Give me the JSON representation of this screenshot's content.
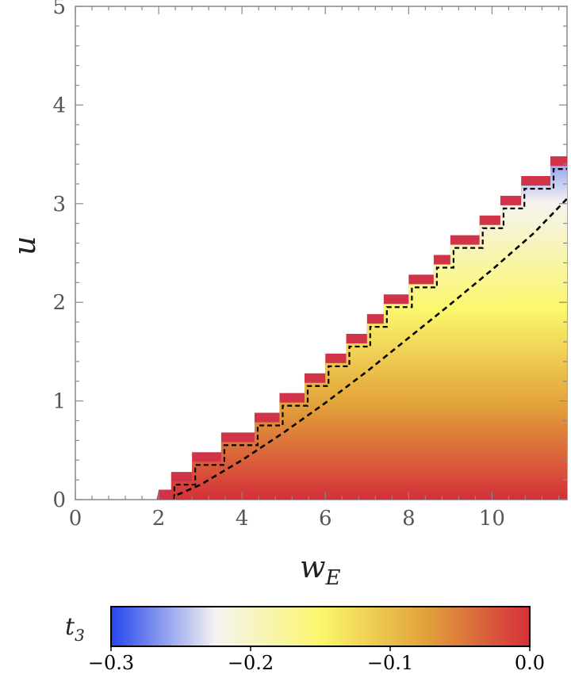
{
  "chart_data": {
    "type": "heatmap",
    "title": "",
    "xlabel": "w_E",
    "ylabel": "u",
    "xlim": [
      0,
      11.8
    ],
    "ylim": [
      0,
      5
    ],
    "x_ticks": [
      0,
      2,
      4,
      6,
      8,
      10
    ],
    "x_tick_labels": [
      "0",
      "2",
      "4",
      "6",
      "8",
      "10"
    ],
    "y_ticks": [
      0,
      1,
      2,
      3,
      4,
      5
    ],
    "y_tick_labels": [
      "0",
      "1",
      "2",
      "3",
      "4",
      "5"
    ],
    "region_upper_boundary": {
      "description_points_x": [
        2.0,
        2.3,
        2.3,
        2.8,
        2.8,
        3.5,
        3.5,
        4.3,
        4.3,
        4.9,
        4.9,
        5.5,
        5.5,
        6.0,
        6.0,
        6.5,
        6.5,
        7.0,
        7.0,
        7.4,
        7.4,
        8.0,
        8.0,
        8.6,
        8.6,
        9.0,
        9.0,
        9.7,
        9.7,
        10.2,
        10.2,
        10.7,
        10.7,
        11.4,
        11.4,
        11.8
      ],
      "description_points_u": [
        0.1,
        0.1,
        0.28,
        0.28,
        0.48,
        0.48,
        0.68,
        0.68,
        0.88,
        0.88,
        1.08,
        1.08,
        1.28,
        1.28,
        1.48,
        1.48,
        1.68,
        1.68,
        1.88,
        1.88,
        2.08,
        2.08,
        2.28,
        2.28,
        2.48,
        2.48,
        2.68,
        2.68,
        2.88,
        2.88,
        3.08,
        3.08,
        3.28,
        3.28,
        3.48,
        3.48
      ]
    },
    "contour_-0.2": {
      "label": "−0.2",
      "x": [
        2.45,
        3.0,
        4.0,
        5.0,
        6.0,
        7.0,
        8.0,
        9.0,
        10.0,
        11.0,
        11.8
      ],
      "u": [
        0.05,
        0.15,
        0.4,
        0.68,
        0.98,
        1.3,
        1.64,
        1.98,
        2.33,
        2.7,
        3.05
      ]
    },
    "colorbar": {
      "title": "t_3",
      "range": [
        -0.3,
        0.0
      ],
      "ticks": [
        -0.3,
        -0.2,
        -0.1,
        0.0
      ],
      "tick_labels": [
        "−0.3",
        "−0.2",
        "−0.1",
        "0.0"
      ],
      "colors": [
        "#2446ee",
        "#f5f3f0",
        "#fbf76c",
        "#e2a23a",
        "#d4303a"
      ]
    }
  }
}
